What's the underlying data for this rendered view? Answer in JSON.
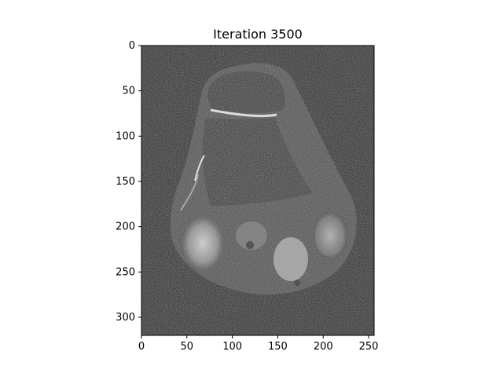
{
  "figure": {
    "title": "Iteration 3500",
    "image_description_icon": "mri-knee-slice-image"
  },
  "axes": {
    "x_ticks": [
      "0",
      "50",
      "100",
      "150",
      "200",
      "250"
    ],
    "y_ticks": [
      "0",
      "50",
      "100",
      "150",
      "200",
      "250",
      "300"
    ],
    "x_tick_values": [
      0,
      50,
      100,
      150,
      200,
      250
    ],
    "y_tick_values": [
      0,
      50,
      100,
      150,
      200,
      250,
      300
    ],
    "xlim": [
      0,
      256
    ],
    "ylim": [
      320,
      0
    ]
  },
  "colors": {
    "background": "#0e0e0e",
    "tissue": "#3a3a3a",
    "bright": "#bdbdbd"
  }
}
